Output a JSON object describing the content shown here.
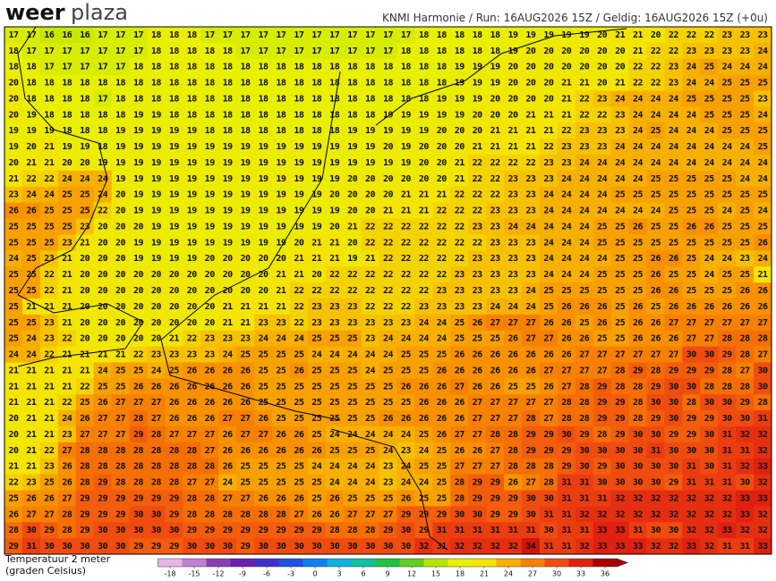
{
  "header": {
    "logo_bold": "weer",
    "logo_light": "plaza",
    "info": "KNMI Harmonie / Run: 16AUG2026 15Z / Geldig: 16AUG2026 15Z (+0u)"
  },
  "legend": {
    "title_line1": "Temperatuur 2 meter",
    "title_line2": "(graden Celsius)"
  },
  "colorbar": {
    "ticks": [
      -18,
      -15,
      -12,
      -9,
      -6,
      -3,
      0,
      3,
      6,
      9,
      12,
      15,
      18,
      21,
      24,
      27,
      30,
      33,
      36
    ],
    "colors": [
      "#e8b4e8",
      "#c080d0",
      "#8a40b0",
      "#6a20b0",
      "#4030c8",
      "#2050e0",
      "#1080f0",
      "#10b0e0",
      "#10c0a0",
      "#20c040",
      "#60d020",
      "#b8e400",
      "#e8f000",
      "#f4e400",
      "#f8b000",
      "#f88000",
      "#f04c10",
      "#e02010",
      "#a80000"
    ]
  },
  "grid": [
    [
      17,
      17,
      16,
      16,
      16,
      17,
      17,
      17,
      18,
      18,
      18,
      17,
      17,
      17,
      17,
      17,
      17,
      17,
      17,
      17,
      17,
      17,
      17,
      18,
      18,
      18,
      18,
      18,
      19,
      19,
      19,
      19,
      19,
      20,
      21,
      21,
      20,
      22,
      22,
      22,
      23,
      23,
      23
    ],
    [
      18,
      17,
      17,
      17,
      17,
      17,
      17,
      17,
      18,
      18,
      18,
      18,
      18,
      17,
      17,
      17,
      17,
      17,
      17,
      17,
      17,
      17,
      18,
      18,
      18,
      18,
      18,
      18,
      19,
      20,
      20,
      20,
      20,
      20,
      20,
      21,
      22,
      22,
      23,
      23,
      23,
      23,
      24
    ],
    [
      18,
      18,
      17,
      17,
      17,
      17,
      17,
      18,
      18,
      18,
      18,
      18,
      18,
      18,
      18,
      18,
      18,
      18,
      18,
      18,
      18,
      18,
      18,
      18,
      18,
      19,
      19,
      19,
      20,
      20,
      20,
      20,
      20,
      20,
      20,
      22,
      22,
      23,
      24,
      25,
      24,
      24,
      24
    ],
    [
      20,
      18,
      18,
      18,
      18,
      18,
      18,
      18,
      18,
      18,
      18,
      18,
      18,
      18,
      18,
      18,
      18,
      18,
      18,
      18,
      18,
      18,
      18,
      18,
      18,
      19,
      19,
      19,
      20,
      20,
      20,
      21,
      21,
      20,
      21,
      22,
      22,
      23,
      24,
      24,
      25,
      25,
      25
    ],
    [
      20,
      18,
      18,
      18,
      18,
      17,
      18,
      18,
      18,
      18,
      18,
      18,
      18,
      18,
      18,
      18,
      18,
      18,
      18,
      18,
      18,
      18,
      18,
      18,
      19,
      19,
      19,
      20,
      20,
      20,
      20,
      21,
      22,
      23,
      24,
      24,
      24,
      24,
      25,
      25,
      25,
      25,
      23
    ],
    [
      20,
      19,
      18,
      18,
      18,
      18,
      18,
      19,
      19,
      18,
      18,
      18,
      18,
      18,
      18,
      18,
      18,
      18,
      18,
      18,
      18,
      19,
      19,
      19,
      19,
      19,
      20,
      20,
      20,
      21,
      21,
      21,
      22,
      22,
      23,
      24,
      24,
      24,
      24,
      25,
      25,
      25,
      24
    ],
    [
      19,
      19,
      19,
      18,
      18,
      18,
      19,
      19,
      19,
      19,
      19,
      18,
      18,
      18,
      18,
      18,
      18,
      18,
      18,
      19,
      19,
      19,
      19,
      19,
      20,
      20,
      20,
      21,
      21,
      21,
      21,
      22,
      23,
      23,
      23,
      24,
      25,
      24,
      24,
      24,
      25,
      25,
      25
    ],
    [
      19,
      20,
      21,
      19,
      19,
      18,
      19,
      19,
      19,
      19,
      19,
      19,
      19,
      19,
      19,
      19,
      19,
      19,
      19,
      19,
      19,
      20,
      19,
      20,
      20,
      20,
      21,
      21,
      21,
      21,
      22,
      23,
      23,
      23,
      24,
      24,
      24,
      24,
      24,
      24,
      24,
      24,
      25
    ],
    [
      20,
      21,
      21,
      20,
      20,
      19,
      19,
      19,
      19,
      19,
      19,
      19,
      19,
      19,
      19,
      19,
      19,
      19,
      19,
      19,
      19,
      19,
      19,
      20,
      20,
      21,
      22,
      22,
      22,
      22,
      23,
      23,
      24,
      24,
      24,
      24,
      24,
      24,
      24,
      24,
      24,
      24,
      24
    ],
    [
      21,
      22,
      22,
      24,
      24,
      24,
      19,
      19,
      19,
      19,
      19,
      19,
      19,
      19,
      19,
      19,
      19,
      19,
      19,
      20,
      20,
      20,
      20,
      20,
      20,
      21,
      22,
      22,
      23,
      23,
      23,
      24,
      24,
      24,
      24,
      24,
      25,
      25,
      25,
      25,
      25,
      24,
      24
    ],
    [
      23,
      24,
      24,
      25,
      25,
      24,
      20,
      19,
      19,
      19,
      19,
      19,
      19,
      19,
      19,
      19,
      19,
      19,
      20,
      20,
      20,
      20,
      21,
      21,
      21,
      22,
      22,
      22,
      23,
      23,
      24,
      24,
      24,
      24,
      25,
      25,
      25,
      25,
      25,
      25,
      25,
      25,
      25
    ],
    [
      26,
      26,
      25,
      25,
      25,
      22,
      20,
      19,
      19,
      19,
      19,
      19,
      19,
      19,
      19,
      19,
      19,
      19,
      19,
      20,
      20,
      21,
      21,
      21,
      22,
      22,
      22,
      23,
      23,
      23,
      24,
      24,
      24,
      24,
      24,
      24,
      24,
      25,
      25,
      25,
      24,
      25,
      24
    ],
    [
      25,
      25,
      25,
      25,
      23,
      20,
      20,
      20,
      19,
      19,
      19,
      19,
      19,
      19,
      19,
      19,
      19,
      19,
      20,
      21,
      22,
      22,
      22,
      22,
      22,
      22,
      23,
      23,
      24,
      24,
      24,
      24,
      24,
      25,
      25,
      26,
      25,
      25,
      26,
      26,
      25,
      25,
      25
    ],
    [
      25,
      25,
      25,
      23,
      21,
      20,
      20,
      19,
      19,
      19,
      19,
      19,
      19,
      19,
      19,
      19,
      20,
      21,
      21,
      20,
      22,
      22,
      22,
      22,
      22,
      22,
      22,
      23,
      23,
      23,
      24,
      24,
      24,
      25,
      25,
      25,
      25,
      25,
      25,
      25,
      25,
      25,
      26
    ],
    [
      24,
      25,
      23,
      21,
      20,
      20,
      20,
      19,
      19,
      19,
      19,
      20,
      20,
      20,
      20,
      20,
      21,
      21,
      21,
      19,
      21,
      22,
      22,
      22,
      22,
      22,
      23,
      23,
      23,
      23,
      24,
      24,
      24,
      24,
      25,
      25,
      26,
      26,
      25,
      24,
      24,
      23,
      24
    ],
    [
      25,
      25,
      22,
      21,
      20,
      20,
      20,
      20,
      20,
      20,
      20,
      20,
      20,
      20,
      20,
      21,
      21,
      20,
      22,
      22,
      22,
      22,
      22,
      22,
      22,
      23,
      23,
      23,
      23,
      23,
      24,
      24,
      24,
      25,
      25,
      25,
      26,
      25,
      25,
      24,
      25,
      25,
      21
    ],
    [
      25,
      25,
      22,
      21,
      20,
      20,
      20,
      20,
      20,
      20,
      20,
      20,
      20,
      20,
      20,
      21,
      22,
      22,
      22,
      22,
      22,
      22,
      22,
      22,
      23,
      23,
      23,
      23,
      23,
      24,
      25,
      25,
      25,
      25,
      25,
      25,
      26,
      26,
      25,
      25,
      25,
      26,
      26
    ],
    [
      25,
      21,
      21,
      21,
      20,
      20,
      20,
      20,
      20,
      20,
      20,
      20,
      21,
      21,
      21,
      21,
      22,
      23,
      23,
      23,
      22,
      22,
      22,
      23,
      23,
      23,
      23,
      24,
      24,
      24,
      25,
      26,
      26,
      26,
      25,
      26,
      25,
      26,
      26,
      26,
      26,
      26,
      26
    ],
    [
      25,
      25,
      23,
      21,
      20,
      20,
      20,
      20,
      20,
      20,
      20,
      20,
      21,
      21,
      23,
      23,
      22,
      23,
      23,
      23,
      23,
      23,
      23,
      24,
      24,
      25,
      26,
      27,
      27,
      27,
      26,
      26,
      25,
      26,
      25,
      26,
      26,
      27,
      27,
      27,
      27,
      27,
      27
    ],
    [
      25,
      24,
      23,
      22,
      20,
      20,
      20,
      20,
      20,
      21,
      22,
      23,
      23,
      23,
      24,
      24,
      24,
      25,
      25,
      25,
      23,
      24,
      24,
      24,
      24,
      25,
      25,
      25,
      26,
      27,
      27,
      26,
      26,
      25,
      25,
      26,
      26,
      26,
      27,
      27,
      28,
      28,
      28
    ],
    [
      24,
      24,
      22,
      21,
      21,
      21,
      21,
      22,
      23,
      23,
      23,
      23,
      24,
      25,
      25,
      25,
      25,
      24,
      24,
      24,
      24,
      24,
      25,
      25,
      25,
      26,
      26,
      26,
      26,
      26,
      26,
      26,
      27,
      27,
      27,
      27,
      27,
      27,
      30,
      30,
      29,
      28,
      27
    ],
    [
      21,
      21,
      21,
      21,
      21,
      24,
      25,
      25,
      24,
      25,
      26,
      26,
      26,
      26,
      25,
      25,
      26,
      25,
      25,
      25,
      24,
      25,
      25,
      25,
      26,
      26,
      26,
      26,
      26,
      26,
      27,
      27,
      27,
      27,
      28,
      29,
      28,
      29,
      29,
      29,
      28,
      27,
      30
    ],
    [
      21,
      21,
      21,
      21,
      22,
      25,
      25,
      26,
      26,
      26,
      26,
      26,
      26,
      26,
      25,
      25,
      25,
      25,
      25,
      25,
      25,
      25,
      26,
      26,
      26,
      27,
      26,
      26,
      25,
      25,
      26,
      27,
      28,
      29,
      28,
      28,
      29,
      30,
      30,
      28,
      28,
      28,
      30
    ],
    [
      21,
      21,
      21,
      22,
      25,
      26,
      27,
      27,
      27,
      26,
      26,
      26,
      26,
      26,
      25,
      25,
      25,
      25,
      25,
      25,
      25,
      25,
      25,
      26,
      26,
      26,
      27,
      27,
      27,
      27,
      27,
      28,
      28,
      29,
      29,
      28,
      30,
      30,
      28,
      30,
      30,
      29,
      28
    ],
    [
      20,
      21,
      21,
      24,
      26,
      27,
      27,
      28,
      27,
      26,
      26,
      26,
      27,
      27,
      26,
      25,
      25,
      25,
      25,
      25,
      25,
      26,
      26,
      26,
      26,
      26,
      27,
      27,
      27,
      28,
      27,
      28,
      28,
      29,
      29,
      28,
      29,
      30,
      29,
      29,
      30,
      30,
      31
    ],
    [
      20,
      21,
      21,
      23,
      27,
      27,
      27,
      29,
      28,
      27,
      27,
      27,
      26,
      27,
      27,
      26,
      26,
      25,
      24,
      24,
      24,
      24,
      24,
      25,
      26,
      27,
      27,
      28,
      28,
      29,
      29,
      30,
      29,
      28,
      29,
      30,
      30,
      29,
      29,
      30,
      31,
      32,
      32
    ],
    [
      20,
      21,
      22,
      27,
      28,
      28,
      28,
      28,
      28,
      28,
      28,
      27,
      26,
      26,
      26,
      26,
      26,
      26,
      25,
      25,
      25,
      24,
      23,
      24,
      25,
      26,
      26,
      27,
      28,
      29,
      29,
      29,
      30,
      30,
      30,
      30,
      31,
      30,
      30,
      30,
      31,
      31,
      32
    ],
    [
      21,
      21,
      23,
      26,
      28,
      28,
      28,
      28,
      28,
      28,
      28,
      28,
      26,
      25,
      25,
      25,
      25,
      24,
      24,
      24,
      24,
      23,
      24,
      25,
      25,
      27,
      27,
      27,
      28,
      28,
      28,
      29,
      30,
      29,
      30,
      30,
      30,
      30,
      31,
      30,
      31,
      32,
      33
    ],
    [
      22,
      23,
      25,
      26,
      28,
      29,
      28,
      28,
      28,
      28,
      27,
      27,
      24,
      25,
      25,
      25,
      25,
      25,
      24,
      24,
      24,
      23,
      24,
      24,
      25,
      28,
      29,
      29,
      26,
      27,
      28,
      31,
      31,
      30,
      30,
      30,
      30,
      29,
      31,
      31,
      31,
      30,
      32
    ],
    [
      25,
      26,
      26,
      27,
      29,
      29,
      29,
      29,
      29,
      29,
      28,
      28,
      27,
      27,
      26,
      26,
      26,
      25,
      26,
      25,
      25,
      25,
      26,
      25,
      25,
      28,
      29,
      29,
      29,
      30,
      30,
      31,
      31,
      31,
      32,
      32,
      32,
      32,
      32,
      32,
      32,
      33,
      33
    ],
    [
      26,
      27,
      27,
      28,
      29,
      29,
      29,
      30,
      30,
      29,
      28,
      28,
      28,
      28,
      28,
      28,
      27,
      26,
      26,
      27,
      27,
      27,
      29,
      29,
      29,
      30,
      30,
      29,
      29,
      30,
      31,
      31,
      32,
      32,
      32,
      32,
      32,
      32,
      32,
      32,
      32,
      33,
      32
    ],
    [
      28,
      30,
      29,
      28,
      29,
      30,
      30,
      30,
      30,
      30,
      29,
      29,
      29,
      29,
      29,
      29,
      29,
      29,
      28,
      28,
      28,
      29,
      30,
      29,
      31,
      31,
      31,
      31,
      31,
      31,
      30,
      31,
      31,
      33,
      33,
      31,
      30,
      30,
      32,
      32,
      33,
      32,
      32
    ],
    [
      29,
      31,
      30,
      30,
      30,
      30,
      30,
      29,
      29,
      29,
      30,
      30,
      30,
      29,
      30,
      30,
      30,
      30,
      30,
      30,
      30,
      30,
      30,
      32,
      31,
      32,
      32,
      32,
      32,
      34,
      31,
      31,
      32,
      33,
      33,
      33,
      32,
      32,
      33,
      32,
      31,
      31,
      33
    ]
  ]
}
